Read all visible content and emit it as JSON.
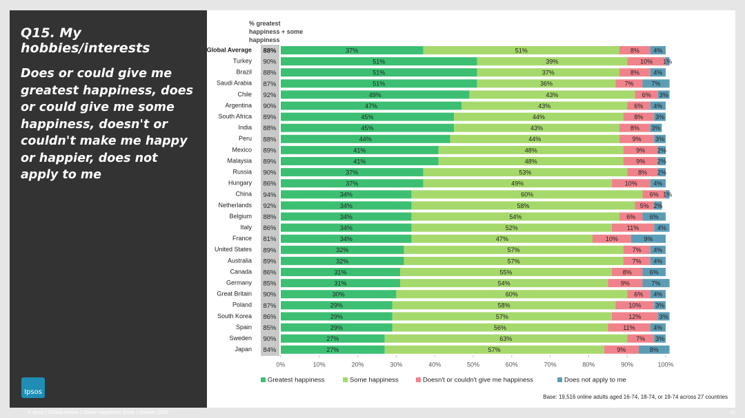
{
  "chart_data": {
    "type": "stacked_bar_horizontal",
    "title": "Q15. My hobbies/interests",
    "subtitle": "Does or could give me greatest happiness, does or could give me some happiness, doesn't or couldn't make me happy or happier, does not apply to me",
    "totals_header": "% greatest happiness + some happiness",
    "categories": [
      "Global Average",
      "Turkey",
      "Brazil",
      "Saudi Arabia",
      "Chile",
      "Argentina",
      "South Africa",
      "India",
      "Peru",
      "Mexico",
      "Malaysia",
      "Russia",
      "Hungary",
      "China",
      "Netherlands",
      "Belgium",
      "Italy",
      "France",
      "United States",
      "Australia",
      "Canada",
      "Germany",
      "Great Britain",
      "Poland",
      "South Korea",
      "Spain",
      "Sweden",
      "Japan"
    ],
    "totals": {
      "values": [
        88,
        90,
        88,
        87,
        92,
        90,
        89,
        88,
        88,
        89,
        89,
        90,
        86,
        94,
        92,
        88,
        86,
        81,
        89,
        89,
        86,
        85,
        90,
        87,
        86,
        85,
        90,
        84
      ],
      "value_labels": [
        "88%",
        "90%",
        "88%",
        "87%",
        "92%",
        "90%",
        "89%",
        "88%",
        "88%",
        "89%",
        "89%",
        "90%",
        "86%",
        "94%",
        "92%",
        "88%",
        "86%",
        "81%",
        "89%",
        "89%",
        "86%",
        "85%",
        "90%",
        "87%",
        "86%",
        "85%",
        "90%",
        "84%"
      ]
    },
    "series": [
      {
        "name": "Greatest happiness",
        "color": "#3cbf73",
        "values": [
          37,
          51,
          51,
          51,
          49,
          47,
          45,
          45,
          44,
          41,
          41,
          37,
          37,
          34,
          34,
          34,
          34,
          34,
          32,
          32,
          31,
          31,
          30,
          29,
          29,
          29,
          27,
          27
        ],
        "value_labels": [
          "37%",
          "51%",
          "51%",
          "51%",
          "49%",
          "47%",
          "45%",
          "45%",
          "44%",
          "41%",
          "41%",
          "37%",
          "37%",
          "34%",
          "34%",
          "34%",
          "34%",
          "34%",
          "32%",
          "32%",
          "31%",
          "31%",
          "30%",
          "29%",
          "29%",
          "29%",
          "27%",
          "27%"
        ]
      },
      {
        "name": "Some happiness",
        "color": "#a6d96b",
        "values": [
          51,
          39,
          37,
          36,
          43,
          43,
          44,
          43,
          44,
          48,
          48,
          53,
          49,
          60,
          58,
          54,
          52,
          47,
          57,
          57,
          55,
          54,
          60,
          58,
          57,
          56,
          63,
          57
        ],
        "value_labels": [
          "51%",
          "39%",
          "37%",
          "36%",
          "43%",
          "43%",
          "44%",
          "43%",
          "44%",
          "48%",
          "48%",
          "53%",
          "49%",
          "60%",
          "58%",
          "54%",
          "52%",
          "47%",
          "57%",
          "57%",
          "55%",
          "54%",
          "60%",
          "58%",
          "57%",
          "56%",
          "63%",
          "57%"
        ]
      },
      {
        "name": "Doesn't or couldn't give me happiness",
        "color": "#f0828b",
        "values": [
          8,
          10,
          8,
          7,
          6,
          6,
          8,
          8,
          9,
          9,
          9,
          8,
          10,
          6,
          5,
          6,
          11,
          10,
          7,
          7,
          8,
          9,
          6,
          10,
          12,
          11,
          7,
          9
        ],
        "value_labels": [
          "8%",
          "10%",
          "8%",
          "7%",
          "6%",
          "6%",
          "8%",
          "8%",
          "9%",
          "9%",
          "9%",
          "8%",
          "10%",
          "6%",
          "5%",
          "6%",
          "11%",
          "10%",
          "7%",
          "7%",
          "8%",
          "9%",
          "6%",
          "10%",
          "12%",
          "11%",
          "7%",
          "9%"
        ]
      },
      {
        "name": "Does not apply to me",
        "color": "#5c9db6",
        "values": [
          4,
          1,
          4,
          7,
          3,
          4,
          3,
          3,
          3,
          2,
          2,
          2,
          4,
          1,
          2,
          6,
          4,
          9,
          4,
          4,
          6,
          7,
          4,
          3,
          3,
          4,
          3,
          8
        ],
        "value_labels": [
          "4%",
          "1%",
          "4%",
          "7%",
          "3%",
          "4%",
          "3%",
          "3%",
          "3%",
          "2%",
          "2%",
          "2%",
          "4%",
          "1%",
          "2%",
          "6%",
          "4%",
          "9%",
          "4%",
          "4%",
          "6%",
          "7%",
          "4%",
          "3%",
          "3%",
          "4%",
          "3%",
          "8%"
        ]
      }
    ],
    "xlim": [
      0,
      100
    ],
    "xticks": [
      {
        "value": 0,
        "label": "0%"
      },
      {
        "value": 10,
        "label": "10%"
      },
      {
        "value": 20,
        "label": "20%"
      },
      {
        "value": 30,
        "label": "30%"
      },
      {
        "value": 40,
        "label": "40%"
      },
      {
        "value": 50,
        "label": "50%"
      },
      {
        "value": 60,
        "label": "60%"
      },
      {
        "value": 70,
        "label": "70%"
      },
      {
        "value": 80,
        "label": "80%"
      },
      {
        "value": 90,
        "label": "90%"
      },
      {
        "value": 100,
        "label": "100%"
      }
    ],
    "note": "Base: 19,516 online adults aged 16-74, 18-74, or 19-74 across 27 countries",
    "footer": "© Ipsos | Global Advisor | Global Happiness Study | October 2020",
    "page_number": "31",
    "logo": "Ipsos"
  }
}
